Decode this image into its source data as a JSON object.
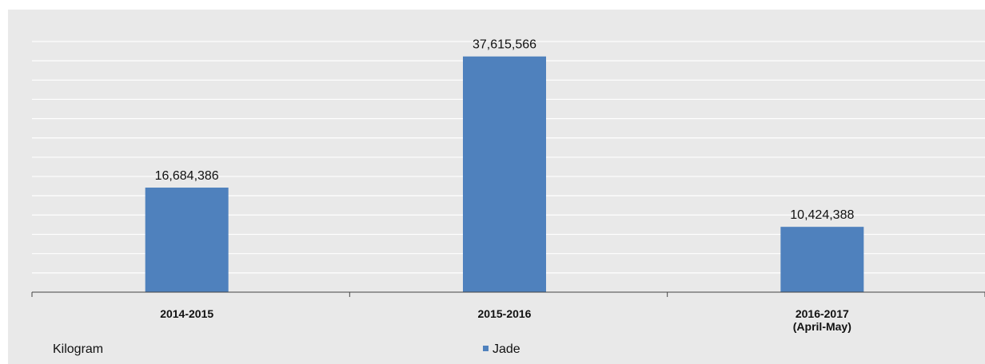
{
  "chart_data": {
    "type": "bar",
    "categories": [
      "2014-2015",
      "2015-2016",
      "2016-2017\n(April-May)"
    ],
    "series": [
      {
        "name": "Jade",
        "values": [
          16684386,
          37615566,
          10424388
        ]
      }
    ],
    "data_labels": [
      "16,684,386",
      "37,615,566",
      "10,424,388"
    ],
    "unit_label": "Kilogram",
    "ylim": [
      0,
      40000000
    ],
    "grid": true,
    "legend": "bottom-center",
    "colors": {
      "bar": "#4f81bd",
      "background": "#e9e9e9",
      "grid": "#ffffff"
    }
  }
}
